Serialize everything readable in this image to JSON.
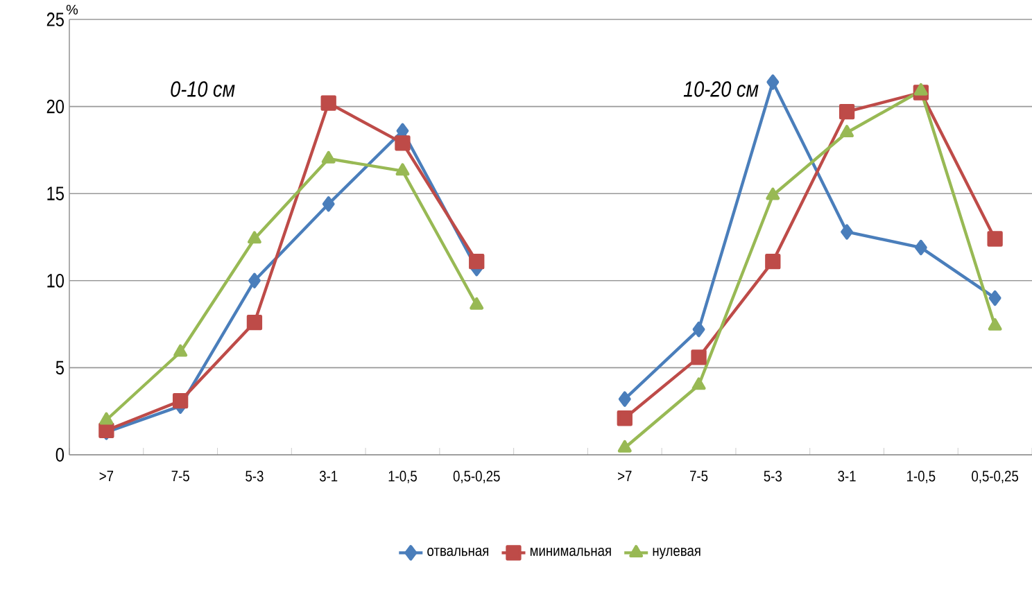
{
  "chart_data": {
    "type": "line",
    "ylabel": "%",
    "categories": [
      ">7",
      "7-5",
      "5-3",
      "3-1",
      "1-0,5",
      "0,5-0,25",
      null,
      ">7",
      "7-5",
      "5-3",
      "3-1",
      "1-0,5",
      "0,5-0,25"
    ],
    "series": [
      {
        "name": "отвальная",
        "color": "#4a7ebb",
        "marker": "diamond",
        "values": [
          1.3,
          2.8,
          10.0,
          14.4,
          18.6,
          10.7,
          null,
          3.2,
          7.2,
          21.4,
          12.8,
          11.9,
          9.0
        ]
      },
      {
        "name": "минимальная",
        "color": "#be4b48",
        "marker": "square",
        "values": [
          1.4,
          3.1,
          7.6,
          20.2,
          17.9,
          11.1,
          null,
          2.1,
          5.6,
          11.1,
          19.7,
          20.8,
          12.4
        ]
      },
      {
        "name": "нулевая",
        "color": "#98b954",
        "marker": "triangle",
        "values": [
          2.0,
          5.9,
          12.4,
          17.0,
          16.3,
          8.6,
          null,
          0.4,
          4.0,
          14.9,
          18.5,
          20.9,
          7.4
        ]
      }
    ],
    "ylim": [
      0,
      25
    ],
    "yticks": [
      0,
      5,
      10,
      15,
      20,
      25
    ],
    "grid": "y",
    "legend": "bottom",
    "annotations": [
      "0-10 см",
      "10-20 см"
    ]
  }
}
